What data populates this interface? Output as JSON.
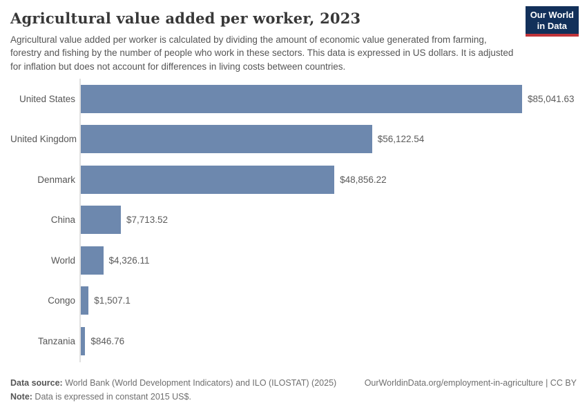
{
  "header": {
    "title": "Agricultural value added per worker, 2023",
    "subtitle": "Agricultural value added per worker is calculated by dividing the amount of economic value generated from farming, forestry and fishing by the number of people who work in these sectors. This data is expressed in US dollars. It is adjusted for inflation but does not account for differences in living costs between countries."
  },
  "logo": {
    "line1": "Our World",
    "line2": "in Data",
    "bg_color": "#12305a",
    "accent_color": "#c0343a"
  },
  "chart_data": {
    "type": "bar",
    "orientation": "horizontal",
    "title": "Agricultural value added per worker, 2023",
    "categories": [
      "United States",
      "United Kingdom",
      "Denmark",
      "China",
      "World",
      "Congo",
      "Tanzania"
    ],
    "values": [
      85041.63,
      56122.54,
      48856.22,
      7713.52,
      4326.11,
      1507.1,
      846.76
    ],
    "value_labels": [
      "$85,041.63",
      "$56,122.54",
      "$48,856.22",
      "$7,713.52",
      "$4,326.11",
      "$1,507.1",
      "$846.76"
    ],
    "xlabel": "",
    "ylabel": "",
    "xlim": [
      0,
      85041.63
    ],
    "bar_color": "#6d88ae",
    "grid": false,
    "legend": "none"
  },
  "footer": {
    "data_source_label": "Data source:",
    "data_source_text": " World Bank (World Development Indicators) and ILO (ILOSTAT) (2025)",
    "attribution": "OurWorldinData.org/employment-in-agriculture | CC BY",
    "note_label": "Note:",
    "note_text": " Data is expressed in constant 2015 US$."
  }
}
